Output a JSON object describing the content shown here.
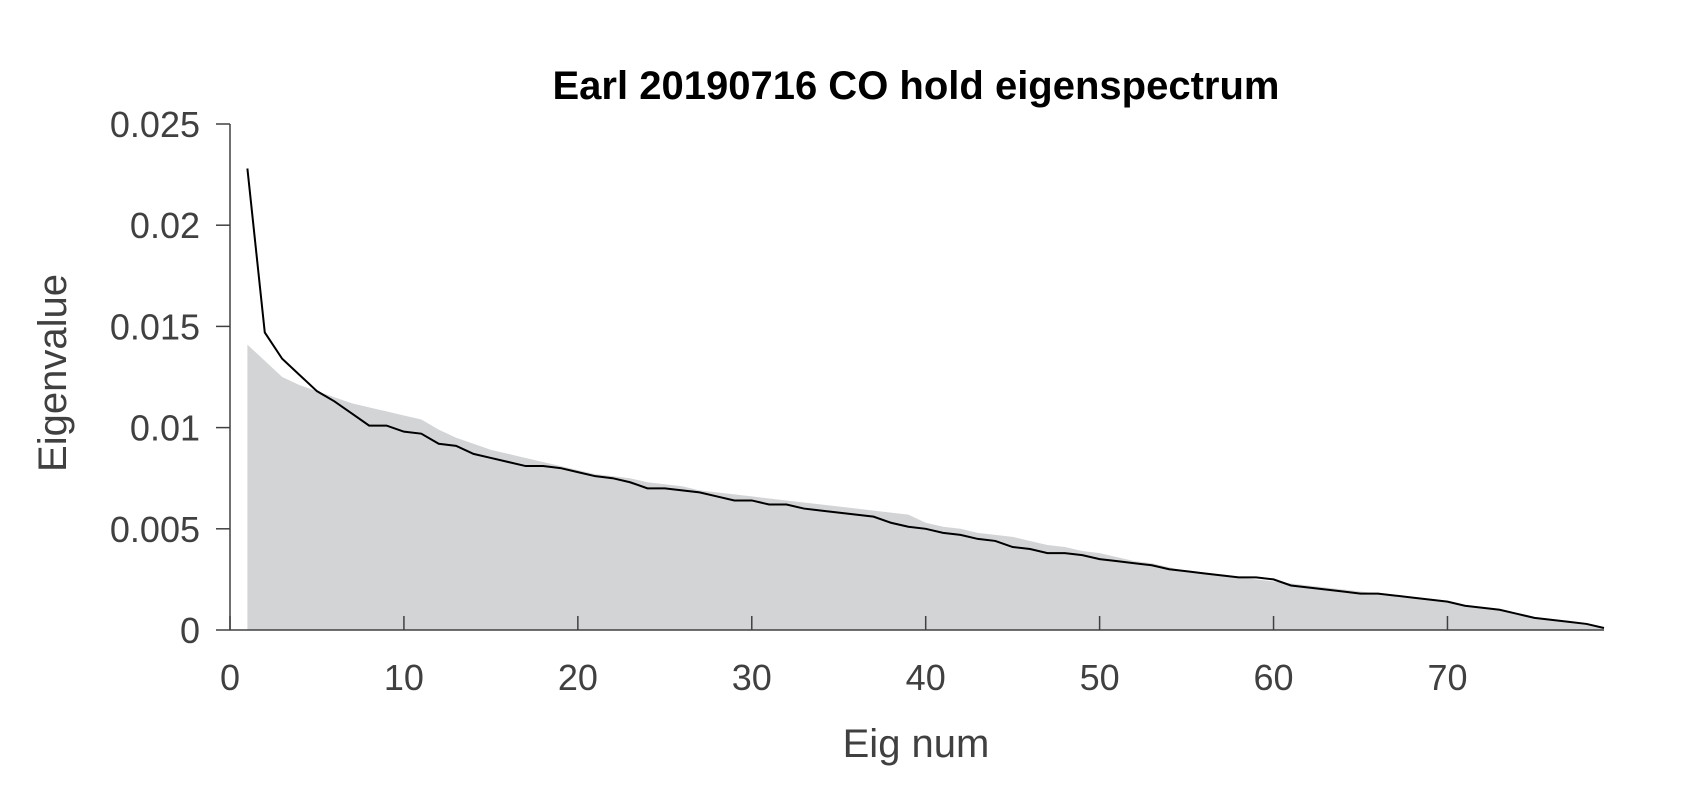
{
  "chart_data": {
    "type": "area",
    "title": "Earl 20190716 CO hold eigenspectrum",
    "xlabel": "Eig num",
    "ylabel": "Eigenvalue",
    "xlim": [
      0,
      79
    ],
    "ylim": [
      0,
      0.025
    ],
    "xticks": [
      0,
      10,
      20,
      30,
      40,
      50,
      60,
      70
    ],
    "xtick_labels": [
      "0",
      "10",
      "20",
      "30",
      "40",
      "50",
      "60",
      "70"
    ],
    "yticks": [
      0,
      0.005,
      0.01,
      0.015,
      0.02,
      0.025
    ],
    "ytick_labels": [
      "0",
      "0.005",
      "0.01",
      "0.015",
      "0.02",
      "0.025"
    ],
    "grid": false,
    "colors": {
      "area": "#d3d4d6",
      "line": "#000000",
      "axis": "#404040"
    },
    "x": [
      1,
      2,
      3,
      4,
      5,
      6,
      7,
      8,
      9,
      10,
      11,
      12,
      13,
      14,
      15,
      16,
      17,
      18,
      19,
      20,
      21,
      22,
      23,
      24,
      25,
      26,
      27,
      28,
      29,
      30,
      31,
      32,
      33,
      34,
      35,
      36,
      37,
      38,
      39,
      40,
      41,
      42,
      43,
      44,
      45,
      46,
      47,
      48,
      49,
      50,
      51,
      52,
      53,
      54,
      55,
      56,
      57,
      58,
      59,
      60,
      61,
      62,
      63,
      64,
      65,
      66,
      67,
      68,
      69,
      70,
      71,
      72,
      73,
      74,
      75,
      76,
      77,
      78,
      79
    ],
    "series": [
      {
        "type": "area",
        "values": [
          0.0141,
          0.0133,
          0.0125,
          0.0121,
          0.0118,
          0.0115,
          0.0112,
          0.011,
          0.0108,
          0.0106,
          0.0104,
          0.0099,
          0.0095,
          0.0092,
          0.0089,
          0.0087,
          0.0085,
          0.0083,
          0.0081,
          0.0079,
          0.0077,
          0.0076,
          0.0075,
          0.0073,
          0.0072,
          0.0071,
          0.0069,
          0.0068,
          0.0067,
          0.0066,
          0.0065,
          0.0064,
          0.0063,
          0.0062,
          0.0061,
          0.006,
          0.0059,
          0.0058,
          0.0057,
          0.0053,
          0.0051,
          0.005,
          0.0048,
          0.0047,
          0.0046,
          0.0044,
          0.0042,
          0.0041,
          0.0039,
          0.0038,
          0.0036,
          0.0034,
          0.0033,
          0.0031,
          0.0029,
          0.0028,
          0.0027,
          0.0026,
          0.0025,
          0.0024,
          0.0023,
          0.0022,
          0.0021,
          0.002,
          0.0019,
          0.0018,
          0.0017,
          0.0016,
          0.0015,
          0.0014,
          0.0012,
          0.0011,
          0.001,
          0.0008,
          0.0006,
          0.0005,
          0.0004,
          0.0003,
          0.0001
        ]
      },
      {
        "type": "line",
        "values": [
          0.0228,
          0.0147,
          0.0134,
          0.0126,
          0.0118,
          0.0113,
          0.0107,
          0.0101,
          0.0101,
          0.0098,
          0.0097,
          0.0092,
          0.0091,
          0.0087,
          0.0085,
          0.0083,
          0.0081,
          0.0081,
          0.008,
          0.0078,
          0.0076,
          0.0075,
          0.0073,
          0.007,
          0.007,
          0.0069,
          0.0068,
          0.0066,
          0.0064,
          0.0064,
          0.0062,
          0.0062,
          0.006,
          0.0059,
          0.0058,
          0.0057,
          0.0056,
          0.0053,
          0.0051,
          0.005,
          0.0048,
          0.0047,
          0.0045,
          0.0044,
          0.0041,
          0.004,
          0.0038,
          0.0038,
          0.0037,
          0.0035,
          0.0034,
          0.0033,
          0.0032,
          0.003,
          0.0029,
          0.0028,
          0.0027,
          0.0026,
          0.0026,
          0.0025,
          0.0022,
          0.0021,
          0.002,
          0.0019,
          0.0018,
          0.0018,
          0.0017,
          0.0016,
          0.0015,
          0.0014,
          0.0012,
          0.0011,
          0.001,
          0.0008,
          0.0006,
          0.0005,
          0.0004,
          0.0003,
          0.0001
        ]
      }
    ]
  }
}
